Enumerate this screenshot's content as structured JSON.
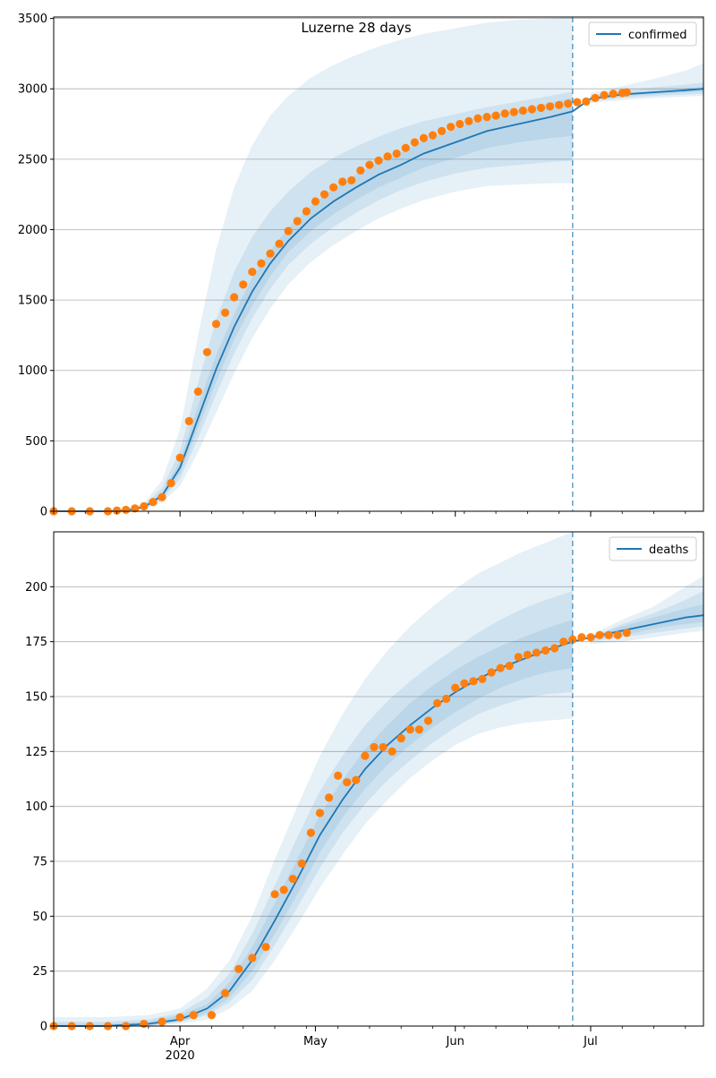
{
  "figure": {
    "title": "Luzerne 28 days",
    "x_axis": {
      "ticks": [
        {
          "date": "2020-04-01",
          "label": "Apr"
        },
        {
          "date": "2020-05-01",
          "label": "May"
        },
        {
          "date": "2020-06-01",
          "label": "Jun"
        },
        {
          "date": "2020-07-01",
          "label": "Jul"
        }
      ],
      "year_label": "2020",
      "range": [
        "2020-03-04",
        "2020-07-26"
      ]
    },
    "forecast_start": "2020-06-27"
  },
  "chart_data": [
    {
      "type": "line",
      "name": "confirmed-panel",
      "legend": "confirmed",
      "legend_position": "top-right",
      "grid": true,
      "ylim": [
        0,
        3510
      ],
      "yticks": [
        0,
        500,
        1000,
        1500,
        2000,
        2500,
        3000,
        3500
      ],
      "colors": {
        "model": "#1f77b4",
        "observed": "#ff7f0e",
        "band": "#1f77b4"
      },
      "model_series": {
        "x": [
          "2020-03-04",
          "2020-03-10",
          "2020-03-16",
          "2020-03-20",
          "2020-03-24",
          "2020-03-28",
          "2020-04-01",
          "2020-04-05",
          "2020-04-09",
          "2020-04-13",
          "2020-04-17",
          "2020-04-21",
          "2020-04-25",
          "2020-04-30",
          "2020-05-05",
          "2020-05-10",
          "2020-05-15",
          "2020-05-20",
          "2020-05-25",
          "2020-06-01",
          "2020-06-08",
          "2020-06-15",
          "2020-06-22",
          "2020-06-27",
          "2020-07-01",
          "2020-07-08",
          "2020-07-15",
          "2020-07-22",
          "2020-07-26"
        ],
        "y": [
          0,
          0,
          0,
          5,
          30,
          110,
          310,
          660,
          1010,
          1310,
          1560,
          1760,
          1920,
          2080,
          2200,
          2300,
          2390,
          2460,
          2540,
          2620,
          2700,
          2750,
          2800,
          2840,
          2930,
          2960,
          2975,
          2990,
          3000
        ]
      },
      "bands": [
        {
          "lower": [
            0,
            0,
            0,
            2,
            15,
            60,
            180,
            420,
            700,
            980,
            1230,
            1440,
            1610,
            1770,
            1890,
            1990,
            2080,
            2150,
            2210,
            2270,
            2310,
            2320,
            2330,
            2330,
            2900,
            2920,
            2935,
            2945,
            2950
          ],
          "upper": [
            0,
            0,
            0,
            10,
            55,
            220,
            580,
            1250,
            1860,
            2300,
            2600,
            2810,
            2950,
            3080,
            3170,
            3240,
            3300,
            3350,
            3390,
            3430,
            3470,
            3490,
            3500,
            3510,
            2970,
            3020,
            3070,
            3130,
            3180
          ]
        },
        {
          "lower": [
            0,
            0,
            0,
            3,
            20,
            80,
            230,
            520,
            830,
            1120,
            1370,
            1580,
            1750,
            1900,
            2020,
            2120,
            2210,
            2280,
            2340,
            2400,
            2440,
            2460,
            2480,
            2490,
            2910,
            2935,
            2950,
            2960,
            2965
          ],
          "upper": [
            0,
            0,
            0,
            8,
            45,
            165,
            430,
            910,
            1360,
            1700,
            1950,
            2130,
            2270,
            2410,
            2510,
            2590,
            2660,
            2720,
            2770,
            2820,
            2870,
            2910,
            2950,
            2980,
            2950,
            2990,
            3010,
            3030,
            3045
          ]
        },
        {
          "lower": [
            0,
            0,
            0,
            4,
            25,
            95,
            270,
            590,
            920,
            1220,
            1460,
            1670,
            1840,
            1990,
            2110,
            2210,
            2300,
            2370,
            2440,
            2510,
            2580,
            2620,
            2650,
            2665,
            2920,
            2948,
            2962,
            2975,
            2982
          ],
          "upper": [
            0,
            0,
            0,
            7,
            38,
            130,
            360,
            750,
            1110,
            1400,
            1660,
            1850,
            2010,
            2170,
            2290,
            2390,
            2480,
            2550,
            2630,
            2720,
            2800,
            2850,
            2900,
            2935,
            2940,
            2972,
            2988,
            3005,
            3015
          ]
        }
      ],
      "observed": {
        "x": [
          "2020-03-04",
          "2020-03-08",
          "2020-03-12",
          "2020-03-16",
          "2020-03-18",
          "2020-03-20",
          "2020-03-22",
          "2020-03-24",
          "2020-03-26",
          "2020-03-28",
          "2020-03-30",
          "2020-04-01",
          "2020-04-03",
          "2020-04-05",
          "2020-04-07",
          "2020-04-09",
          "2020-04-11",
          "2020-04-13",
          "2020-04-15",
          "2020-04-17",
          "2020-04-19",
          "2020-04-21",
          "2020-04-23",
          "2020-04-25",
          "2020-04-27",
          "2020-04-29",
          "2020-05-01",
          "2020-05-03",
          "2020-05-05",
          "2020-05-07",
          "2020-05-09",
          "2020-05-11",
          "2020-05-13",
          "2020-05-15",
          "2020-05-17",
          "2020-05-19",
          "2020-05-21",
          "2020-05-23",
          "2020-05-25",
          "2020-05-27",
          "2020-05-29",
          "2020-05-31",
          "2020-06-02",
          "2020-06-04",
          "2020-06-06",
          "2020-06-08",
          "2020-06-10",
          "2020-06-12",
          "2020-06-14",
          "2020-06-16",
          "2020-06-18",
          "2020-06-20",
          "2020-06-22",
          "2020-06-24",
          "2020-06-26",
          "2020-06-28",
          "2020-06-30",
          "2020-07-02",
          "2020-07-04",
          "2020-07-06",
          "2020-07-08",
          "2020-07-09"
        ],
        "y": [
          0,
          0,
          0,
          0,
          5,
          10,
          20,
          35,
          65,
          100,
          200,
          380,
          640,
          850,
          1130,
          1330,
          1410,
          1520,
          1610,
          1700,
          1760,
          1830,
          1900,
          1990,
          2060,
          2130,
          2200,
          2250,
          2300,
          2340,
          2350,
          2420,
          2460,
          2490,
          2520,
          2540,
          2580,
          2620,
          2650,
          2670,
          2700,
          2730,
          2750,
          2770,
          2790,
          2800,
          2810,
          2825,
          2835,
          2845,
          2855,
          2865,
          2875,
          2885,
          2895,
          2905,
          2910,
          2935,
          2955,
          2965,
          2970,
          2975
        ]
      }
    },
    {
      "type": "line",
      "name": "deaths-panel",
      "legend": "deaths",
      "legend_position": "top-right",
      "grid": true,
      "ylim": [
        0,
        225
      ],
      "yticks": [
        0,
        25,
        50,
        75,
        100,
        125,
        150,
        175,
        200
      ],
      "colors": {
        "model": "#1f77b4",
        "observed": "#ff7f0e",
        "band": "#1f77b4"
      },
      "model_series": {
        "x": [
          "2020-03-04",
          "2020-03-15",
          "2020-03-25",
          "2020-04-01",
          "2020-04-07",
          "2020-04-12",
          "2020-04-17",
          "2020-04-22",
          "2020-04-27",
          "2020-05-02",
          "2020-05-07",
          "2020-05-12",
          "2020-05-17",
          "2020-05-22",
          "2020-05-27",
          "2020-06-01",
          "2020-06-06",
          "2020-06-11",
          "2020-06-16",
          "2020-06-21",
          "2020-06-27",
          "2020-07-01",
          "2020-07-08",
          "2020-07-15",
          "2020-07-22",
          "2020-07-26"
        ],
        "y": [
          0,
          0,
          1,
          3,
          8,
          16,
          30,
          48,
          67,
          87,
          103,
          117,
          128,
          137,
          145,
          152,
          158,
          163,
          167,
          171,
          175,
          177,
          180,
          183,
          186,
          187
        ]
      },
      "bands": [
        {
          "lower": [
            0,
            0,
            0,
            1,
            3,
            8,
            16,
            30,
            46,
            63,
            78,
            92,
            103,
            113,
            121,
            128,
            133,
            136,
            138,
            139,
            140,
            174,
            175,
            177,
            179,
            180
          ],
          "upper": [
            4,
            4,
            5,
            8,
            17,
            30,
            50,
            76,
            100,
            123,
            142,
            158,
            171,
            182,
            191,
            199,
            206,
            211,
            216,
            220,
            225,
            178,
            185,
            191,
            200,
            205
          ]
        },
        {
          "lower": [
            0,
            0,
            0,
            2,
            5,
            11,
            21,
            37,
            54,
            72,
            88,
            101,
            112,
            121,
            129,
            136,
            142,
            146,
            149,
            151,
            152,
            175,
            177,
            179,
            181,
            182
          ],
          "upper": [
            2,
            2,
            3,
            6,
            13,
            24,
            42,
            64,
            86,
            107,
            123,
            137,
            148,
            157,
            165,
            172,
            179,
            185,
            190,
            194,
            198,
            177,
            183,
            188,
            194,
            198
          ]
        },
        {
          "lower": [
            0,
            0,
            0,
            2,
            6,
            13,
            25,
            42,
            60,
            79,
            95,
            108,
            119,
            128,
            136,
            143,
            149,
            154,
            158,
            161,
            163,
            176,
            178,
            181,
            183,
            184
          ],
          "upper": [
            1,
            1,
            2,
            5,
            10,
            20,
            36,
            56,
            76,
            96,
            112,
            126,
            137,
            147,
            155,
            162,
            168,
            173,
            177,
            181,
            185,
            177,
            182,
            186,
            190,
            192
          ]
        }
      ],
      "observed": {
        "x": [
          "2020-03-04",
          "2020-03-08",
          "2020-03-12",
          "2020-03-16",
          "2020-03-20",
          "2020-03-24",
          "2020-03-28",
          "2020-04-01",
          "2020-04-04",
          "2020-04-08",
          "2020-04-11",
          "2020-04-14",
          "2020-04-17",
          "2020-04-20",
          "2020-04-22",
          "2020-04-24",
          "2020-04-26",
          "2020-04-28",
          "2020-04-30",
          "2020-05-02",
          "2020-05-04",
          "2020-05-06",
          "2020-05-08",
          "2020-05-10",
          "2020-05-12",
          "2020-05-14",
          "2020-05-16",
          "2020-05-18",
          "2020-05-20",
          "2020-05-22",
          "2020-05-24",
          "2020-05-26",
          "2020-05-28",
          "2020-05-30",
          "2020-06-01",
          "2020-06-03",
          "2020-06-05",
          "2020-06-07",
          "2020-06-09",
          "2020-06-11",
          "2020-06-13",
          "2020-06-15",
          "2020-06-17",
          "2020-06-19",
          "2020-06-21",
          "2020-06-23",
          "2020-06-25",
          "2020-06-27",
          "2020-06-29",
          "2020-07-01",
          "2020-07-03",
          "2020-07-05",
          "2020-07-07",
          "2020-07-09"
        ],
        "y": [
          0,
          0,
          0,
          0,
          0,
          1,
          2,
          4,
          5,
          5,
          15,
          26,
          31,
          36,
          60,
          62,
          67,
          74,
          88,
          97,
          104,
          114,
          111,
          112,
          123,
          127,
          127,
          125,
          131,
          135,
          135,
          139,
          147,
          149,
          154,
          156,
          157,
          158,
          161,
          163,
          164,
          168,
          169,
          170,
          171,
          172,
          175,
          176,
          177,
          177,
          178,
          178,
          178,
          179
        ]
      }
    }
  ]
}
